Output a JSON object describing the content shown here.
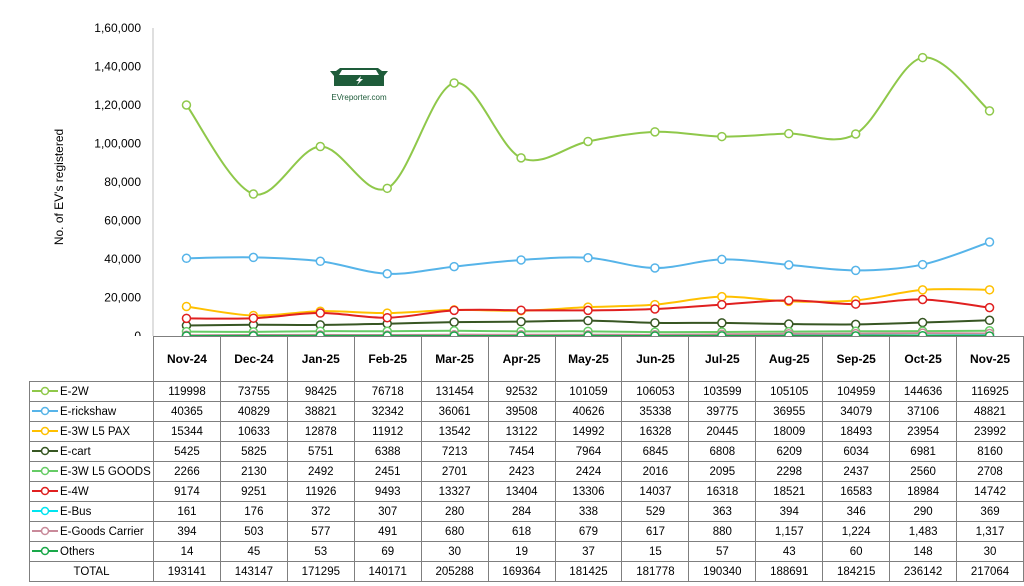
{
  "chart_data": {
    "type": "line",
    "title": "",
    "xlabel": "",
    "ylabel": "No. of EV's registered",
    "ylim": [
      0,
      160000
    ],
    "yticks": [
      0,
      20000,
      40000,
      60000,
      80000,
      100000,
      120000,
      140000,
      160000
    ],
    "ytick_labels": [
      "0",
      "20,000",
      "40,000",
      "60,000",
      "80,000",
      "1,00,000",
      "1,20,000",
      "1,40,000",
      "1,60,000"
    ],
    "categories": [
      "Nov-24",
      "Dec-24",
      "Jan-25",
      "Feb-25",
      "Mar-25",
      "Apr-25",
      "May-25",
      "Jun-25",
      "Jul-25",
      "Aug-25",
      "Sep-25",
      "Oct-25",
      "Nov-25"
    ],
    "series": [
      {
        "name": "E-2W",
        "color": "#8fc84a",
        "values": [
          119998,
          73755,
          98425,
          76718,
          131454,
          92532,
          101059,
          106053,
          103599,
          105105,
          104959,
          144636,
          116925
        ],
        "labels": [
          "119998",
          "73755",
          "98425",
          "76718",
          "131454",
          "92532",
          "101059",
          "106053",
          "103599",
          "105105",
          "104959",
          "144636",
          "116925"
        ]
      },
      {
        "name": "E-rickshaw",
        "color": "#56b4e9",
        "values": [
          40365,
          40829,
          38821,
          32342,
          36061,
          39508,
          40626,
          35338,
          39775,
          36955,
          34079,
          37106,
          48821
        ],
        "labels": [
          "40365",
          "40829",
          "38821",
          "32342",
          "36061",
          "39508",
          "40626",
          "35338",
          "39775",
          "36955",
          "34079",
          "37106",
          "48821"
        ]
      },
      {
        "name": "E-3W L5 PAX",
        "color": "#ffc000",
        "values": [
          15344,
          10633,
          12878,
          11912,
          13542,
          13122,
          14992,
          16328,
          20445,
          18009,
          18493,
          23954,
          23992
        ],
        "labels": [
          "15344",
          "10633",
          "12878",
          "11912",
          "13542",
          "13122",
          "14992",
          "16328",
          "20445",
          "18009",
          "18493",
          "23954",
          "23992"
        ]
      },
      {
        "name": "E-cart",
        "color": "#375623",
        "values": [
          5425,
          5825,
          5751,
          6388,
          7213,
          7454,
          7964,
          6845,
          6808,
          6209,
          6034,
          6981,
          8160
        ],
        "labels": [
          "5425",
          "5825",
          "5751",
          "6388",
          "7213",
          "7454",
          "7964",
          "6845",
          "6808",
          "6209",
          "6034",
          "6981",
          "8160"
        ]
      },
      {
        "name": "E-3W L5 GOODS",
        "color": "#66cc66",
        "values": [
          2266,
          2130,
          2492,
          2451,
          2701,
          2423,
          2424,
          2016,
          2095,
          2298,
          2437,
          2560,
          2708
        ],
        "labels": [
          "2266",
          "2130",
          "2492",
          "2451",
          "2701",
          "2423",
          "2424",
          "2016",
          "2095",
          "2298",
          "2437",
          "2560",
          "2708"
        ]
      },
      {
        "name": "E-4W",
        "color": "#e02020",
        "values": [
          9174,
          9251,
          11926,
          9493,
          13327,
          13404,
          13306,
          14037,
          16318,
          18521,
          16583,
          18984,
          14742
        ],
        "labels": [
          "9174",
          "9251",
          "11926",
          "9493",
          "13327",
          "13404",
          "13306",
          "14037",
          "16318",
          "18521",
          "16583",
          "18984",
          "14742"
        ]
      },
      {
        "name": "E-Bus",
        "color": "#00e5f0",
        "values": [
          161,
          176,
          372,
          307,
          280,
          284,
          338,
          529,
          363,
          394,
          346,
          290,
          369
        ],
        "labels": [
          "161",
          "176",
          "372",
          "307",
          "280",
          "284",
          "338",
          "529",
          "363",
          "394",
          "346",
          "290",
          "369"
        ]
      },
      {
        "name": "E-Goods Carrier",
        "color": "#c98a9a",
        "values": [
          394,
          503,
          577,
          491,
          680,
          618,
          679,
          617,
          880,
          1157,
          1224,
          1483,
          1317
        ],
        "labels": [
          "394",
          "503",
          "577",
          "491",
          "680",
          "618",
          "679",
          "617",
          "880",
          "1,157",
          "1,224",
          "1,483",
          "1,317"
        ]
      },
      {
        "name": "Others",
        "color": "#1aa84a",
        "values": [
          14,
          45,
          53,
          69,
          30,
          19,
          37,
          15,
          57,
          43,
          60,
          148,
          30
        ],
        "labels": [
          "14",
          "45",
          "53",
          "69",
          "30",
          "19",
          "37",
          "15",
          "57",
          "43",
          "60",
          "148",
          "30"
        ]
      }
    ],
    "total": {
      "name": "TOTAL",
      "values": [
        "193141",
        "143147",
        "171295",
        "140171",
        "205288",
        "169364",
        "181425",
        "181778",
        "190340",
        "188691",
        "184215",
        "236142",
        "217064"
      ]
    },
    "legend_position": "table-below",
    "grid": false
  },
  "watermark": {
    "text": "EVreporter.com",
    "color": "#1e5c3a"
  }
}
